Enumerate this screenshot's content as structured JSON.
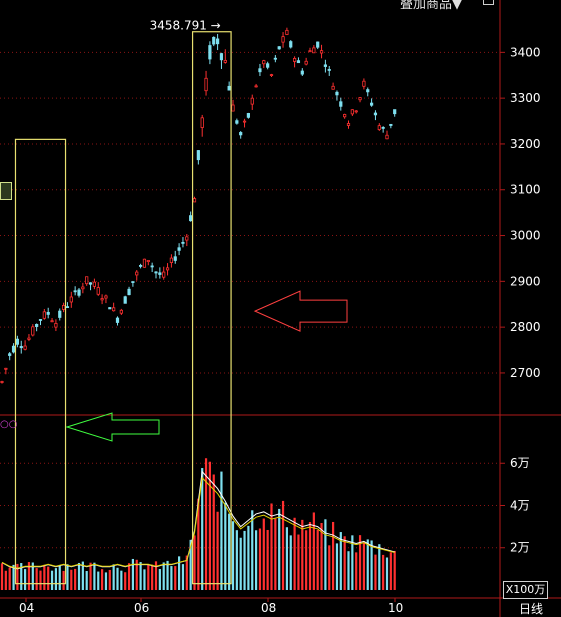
{
  "header": {
    "menu_label": "叠加商品▼"
  },
  "chart_data": {
    "type": "candlestick",
    "price_axis": {
      "ticks": [
        2700,
        2800,
        2900,
        3000,
        3100,
        3200,
        3300,
        3400
      ],
      "range": [
        2630,
        3475
      ]
    },
    "volume_axis": {
      "ticks": [
        "2万",
        "4万",
        "6万"
      ],
      "tick_values": [
        2,
        4,
        6
      ],
      "unit_label": "X100万",
      "range": [
        0,
        7.1
      ]
    },
    "x_ticks": [
      "04",
      "06",
      "08",
      "10"
    ],
    "period_label": "日线",
    "high_annotation": {
      "label": "3458.791 →",
      "value": 3458.791
    },
    "price_path": [
      [
        0,
        2680
      ],
      [
        2,
        2740
      ],
      [
        4,
        2770
      ],
      [
        6,
        2760
      ],
      [
        8,
        2790
      ],
      [
        10,
        2820
      ],
      [
        12,
        2830
      ],
      [
        14,
        2810
      ],
      [
        16,
        2840
      ],
      [
        18,
        2860
      ],
      [
        20,
        2880
      ],
      [
        22,
        2900
      ],
      [
        24,
        2890
      ],
      [
        26,
        2870
      ],
      [
        28,
        2850
      ],
      [
        30,
        2820
      ],
      [
        32,
        2860
      ],
      [
        34,
        2900
      ],
      [
        36,
        2930
      ],
      [
        38,
        2950
      ],
      [
        40,
        2920
      ],
      [
        42,
        2910
      ],
      [
        44,
        2940
      ],
      [
        46,
        2970
      ],
      [
        48,
        3000
      ],
      [
        50,
        3080
      ],
      [
        52,
        3250
      ],
      [
        54,
        3400
      ],
      [
        56,
        3430
      ],
      [
        58,
        3380
      ],
      [
        60,
        3280
      ],
      [
        62,
        3220
      ],
      [
        64,
        3260
      ],
      [
        66,
        3330
      ],
      [
        68,
        3380
      ],
      [
        70,
        3350
      ],
      [
        72,
        3410
      ],
      [
        74,
        3440
      ],
      [
        76,
        3390
      ],
      [
        78,
        3360
      ],
      [
        80,
        3400
      ],
      [
        82,
        3420
      ],
      [
        84,
        3380
      ],
      [
        86,
        3330
      ],
      [
        88,
        3290
      ],
      [
        90,
        3250
      ],
      [
        92,
        3280
      ],
      [
        94,
        3330
      ],
      [
        96,
        3290
      ],
      [
        98,
        3240
      ],
      [
        100,
        3220
      ],
      [
        102,
        3270
      ]
    ],
    "volume_path": [
      [
        0,
        1.3
      ],
      [
        2,
        1.1
      ],
      [
        4,
        1.0
      ],
      [
        6,
        1.1
      ],
      [
        8,
        1.1
      ],
      [
        10,
        1.1
      ],
      [
        12,
        1.2
      ],
      [
        14,
        1.1
      ],
      [
        16,
        1.2
      ],
      [
        18,
        1.1
      ],
      [
        20,
        1.2
      ],
      [
        22,
        1.1
      ],
      [
        24,
        1.2
      ],
      [
        26,
        1.1
      ],
      [
        28,
        1.1
      ],
      [
        30,
        1.2
      ],
      [
        32,
        1.1
      ],
      [
        34,
        1.2
      ],
      [
        36,
        1.2
      ],
      [
        38,
        1.2
      ],
      [
        40,
        1.1
      ],
      [
        42,
        1.2
      ],
      [
        44,
        1.2
      ],
      [
        46,
        1.3
      ],
      [
        48,
        1.4
      ],
      [
        50,
        2.8
      ],
      [
        52,
        5.6
      ],
      [
        54,
        5.2
      ],
      [
        56,
        4.8
      ],
      [
        58,
        4.2
      ],
      [
        60,
        3.5
      ],
      [
        62,
        3.0
      ],
      [
        64,
        3.3
      ],
      [
        66,
        3.6
      ],
      [
        68,
        3.7
      ],
      [
        70,
        3.5
      ],
      [
        72,
        3.6
      ],
      [
        74,
        3.4
      ],
      [
        76,
        3.2
      ],
      [
        78,
        3.0
      ],
      [
        80,
        3.1
      ],
      [
        82,
        3.0
      ],
      [
        84,
        2.7
      ],
      [
        86,
        2.6
      ],
      [
        88,
        2.4
      ],
      [
        90,
        2.3
      ],
      [
        92,
        2.2
      ],
      [
        94,
        2.3
      ],
      [
        96,
        2.1
      ],
      [
        98,
        2.0
      ],
      [
        100,
        1.9
      ],
      [
        102,
        1.8
      ]
    ],
    "highlight_boxes": [
      {
        "x_range": [
          3.5,
          16.5
        ],
        "y_range": [
          3210,
          0.3
        ]
      },
      {
        "x_range": [
          49.5,
          59.5
        ],
        "y_range": [
          3445,
          0.3
        ]
      }
    ],
    "arrows": [
      {
        "color": "#ff4040",
        "direction": "left",
        "at": [
          60,
          2835
        ]
      },
      {
        "color": "#40ff40",
        "direction": "left",
        "at": [
          16,
          7.4
        ]
      }
    ],
    "colors": {
      "up": "#ff3030",
      "down": "#7fe0f0",
      "ma": "#ffffff",
      "ma2": "#e0d000",
      "box": "#e8e070",
      "grid": "#8a1414"
    }
  }
}
